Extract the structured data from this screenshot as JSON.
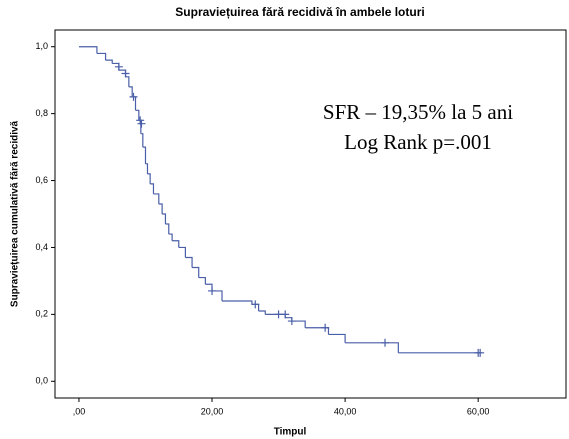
{
  "chart_data": {
    "type": "step",
    "title": "Supraviețuirea fără recidivă în ambele loturi",
    "xlabel": "Timpul",
    "ylabel": "Supraviețuirea cumulativă fără recidivă",
    "annotations": [
      "SFR – 19,35% la 5 ani",
      "Log Rank p=.001"
    ],
    "color": "#4a5fa8",
    "x": [
      0,
      2.7,
      4,
      5,
      6,
      7,
      7.5,
      8,
      8.5,
      9,
      9.3,
      9.6,
      10,
      10.3,
      10.7,
      11.2,
      12,
      12.5,
      13,
      13.5,
      14,
      15,
      16,
      17,
      18,
      19,
      20,
      21.5,
      26,
      27,
      28,
      31,
      32,
      34,
      37.5,
      40,
      48,
      60.3
    ],
    "values": [
      1.0,
      0.98,
      0.96,
      0.95,
      0.93,
      0.91,
      0.88,
      0.85,
      0.81,
      0.78,
      0.74,
      0.7,
      0.65,
      0.62,
      0.59,
      0.56,
      0.53,
      0.5,
      0.47,
      0.44,
      0.42,
      0.4,
      0.37,
      0.34,
      0.31,
      0.29,
      0.27,
      0.24,
      0.23,
      0.21,
      0.2,
      0.19,
      0.18,
      0.16,
      0.14,
      0.115,
      0.085,
      0.085
    ],
    "censored": {
      "x": [
        6,
        7,
        8.2,
        9.2,
        9.4,
        20,
        26.5,
        30,
        31,
        32,
        37,
        46,
        60,
        60.3
      ],
      "values": [
        0.94,
        0.92,
        0.85,
        0.78,
        0.77,
        0.27,
        0.23,
        0.2,
        0.2,
        0.18,
        0.16,
        0.115,
        0.085,
        0.085
      ]
    },
    "xlim": [
      -3.6,
      73.2
    ],
    "ylim": [
      -0.05,
      1.05
    ],
    "xticks": [
      {
        "value": 0,
        "label": ",00"
      },
      {
        "value": 20,
        "label": "20,00"
      },
      {
        "value": 40,
        "label": "40,00"
      },
      {
        "value": 60,
        "label": "60,00"
      }
    ],
    "yticks": [
      {
        "value": 0,
        "label": "0,0"
      },
      {
        "value": 0.2,
        "label": "0,2"
      },
      {
        "value": 0.4,
        "label": "0,4"
      },
      {
        "value": 0.6,
        "label": "0,6"
      },
      {
        "value": 0.8,
        "label": "0,8"
      },
      {
        "value": 1.0,
        "label": "1,0"
      }
    ]
  }
}
